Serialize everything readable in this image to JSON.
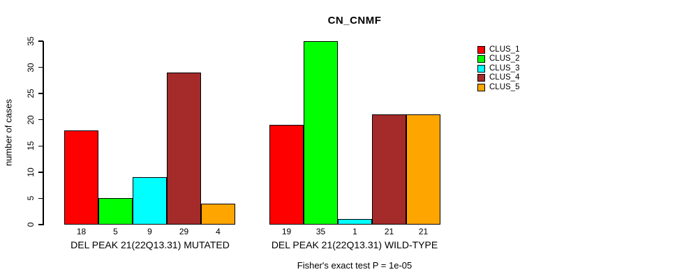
{
  "title": "CN_CNMF",
  "chart_data": {
    "type": "bar",
    "title": "CN_CNMF",
    "ylabel": "number of cases",
    "xlabel": "Fisher's exact test P = 1e-05",
    "ylim": [
      0,
      35
    ],
    "yticks": [
      0,
      5,
      10,
      15,
      20,
      25,
      30,
      35
    ],
    "grid": false,
    "legend_position": "top-right",
    "groups": [
      {
        "label": "DEL PEAK 21(22Q13.31) MUTATED",
        "values": [
          18,
          5,
          9,
          29,
          4
        ]
      },
      {
        "label": "DEL PEAK 21(22Q13.31) WILD-TYPE",
        "values": [
          19,
          35,
          1,
          21,
          21
        ]
      }
    ],
    "legend": [
      {
        "label": "CLUS_1",
        "color": "#FF0000"
      },
      {
        "label": "CLUS_2",
        "color": "#00FF00"
      },
      {
        "label": "CLUS_3",
        "color": "#00FFFF"
      },
      {
        "label": "CLUS_4",
        "color": "#A52A2A"
      },
      {
        "label": "CLUS_5",
        "color": "#FFA500"
      }
    ],
    "footnote": "Fisher's exact test P = 1e-05"
  }
}
